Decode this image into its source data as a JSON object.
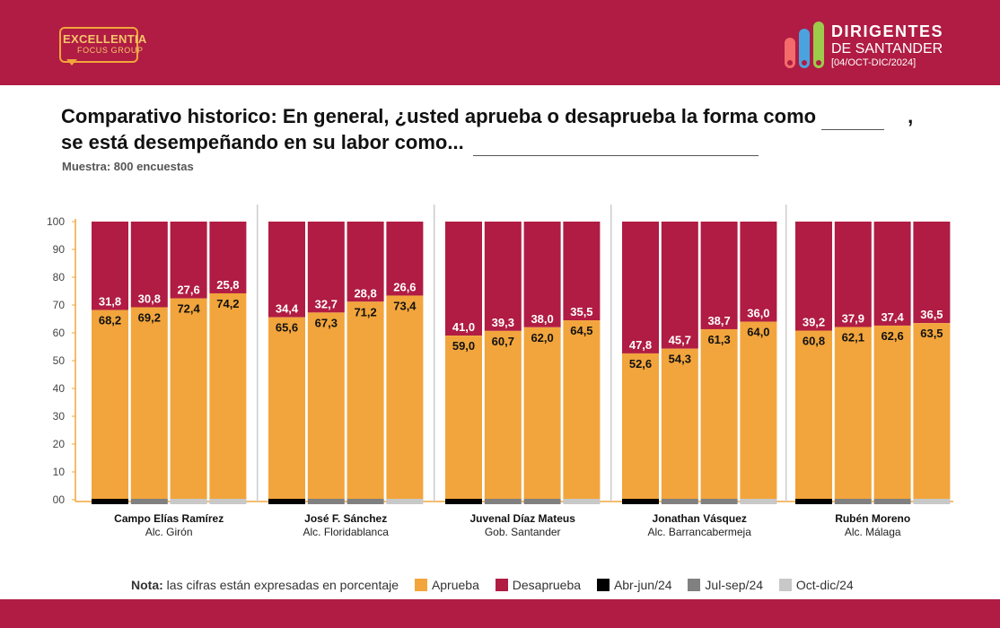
{
  "header": {
    "brand_left_line1": "EXCELLENTIA",
    "brand_left_line2": "FOCUS GROUP",
    "brand_right_line1": "DIRIGENTES",
    "brand_right_line2": "DE SANTANDER",
    "brand_right_line3": "[04/OCT-DIC/2024]"
  },
  "title_line1": "Comparativo historico: En general, ¿usted aprueba o desaprueba la forma como",
  "title_comma": ",",
  "title_line2": "se está desempeñando en su labor como...",
  "sample": "Muestra: 800 encuestas",
  "legend": {
    "note_label": "Nota:",
    "note_text": "las cifras están expresadas en porcentaje",
    "approve": "Aprueba",
    "disapprove": "Desaprueba",
    "period1": "Abr-jun/24",
    "period2": "Jul-sep/24",
    "period3": "Oct-dic/24"
  },
  "colors": {
    "approve": "#f2a53c",
    "disapprove": "#b01c43",
    "period1": "#000000",
    "period2": "#808080",
    "period3": "#c8c8c8",
    "banner": "#b01c43"
  },
  "chart_data": {
    "type": "bar",
    "stacked": true,
    "ylim": [
      0,
      100
    ],
    "yticks": [
      "00",
      "10",
      "20",
      "30",
      "40",
      "50",
      "60",
      "70",
      "80",
      "90",
      "100"
    ],
    "periods": [
      "Abr-jun/24",
      "Jul-sep/24",
      "Oct-dic/24"
    ],
    "groups": [
      {
        "name": "Campo Elías Ramírez",
        "role": "Alc. Girón",
        "bars": [
          {
            "aprueba": 68.2,
            "desaprueba": 31.8,
            "aprueba_label": "68,2",
            "desaprueba_label": "31,8",
            "period": 0
          },
          {
            "aprueba": 69.2,
            "desaprueba": 30.8,
            "aprueba_label": "69,2",
            "desaprueba_label": "30,8",
            "period": 1
          },
          {
            "aprueba": 72.4,
            "desaprueba": 27.6,
            "aprueba_label": "72,4",
            "desaprueba_label": "27,6",
            "period": 2
          },
          {
            "aprueba": 74.2,
            "desaprueba": 25.8,
            "aprueba_label": "74,2",
            "desaprueba_label": "25,8",
            "period": 2
          }
        ]
      },
      {
        "name": "José F. Sánchez",
        "role": "Alc. Floridablanca",
        "bars": [
          {
            "aprueba": 65.6,
            "desaprueba": 34.4,
            "aprueba_label": "65,6",
            "desaprueba_label": "34,4",
            "period": 0
          },
          {
            "aprueba": 67.3,
            "desaprueba": 32.7,
            "aprueba_label": "67,3",
            "desaprueba_label": "32,7",
            "period": 1
          },
          {
            "aprueba": 71.2,
            "desaprueba": 28.8,
            "aprueba_label": "71,2",
            "desaprueba_label": "28,8",
            "period": 1
          },
          {
            "aprueba": 73.4,
            "desaprueba": 26.6,
            "aprueba_label": "73,4",
            "desaprueba_label": "26,6",
            "period": 2
          }
        ]
      },
      {
        "name": "Juvenal Díaz Mateus",
        "role": "Gob. Santander",
        "bars": [
          {
            "aprueba": 59.0,
            "desaprueba": 41.0,
            "aprueba_label": "59,0",
            "desaprueba_label": "41,0",
            "period": 0
          },
          {
            "aprueba": 60.7,
            "desaprueba": 39.3,
            "aprueba_label": "60,7",
            "desaprueba_label": "39,3",
            "period": 1
          },
          {
            "aprueba": 62.0,
            "desaprueba": 38.0,
            "aprueba_label": "62,0",
            "desaprueba_label": "38,0",
            "period": 1
          },
          {
            "aprueba": 64.5,
            "desaprueba": 35.5,
            "aprueba_label": "64,5",
            "desaprueba_label": "35,5",
            "period": 2
          }
        ]
      },
      {
        "name": "Jonathan Vásquez",
        "role": "Alc. Barrancabermeja",
        "bars": [
          {
            "aprueba": 52.6,
            "desaprueba": 47.8,
            "aprueba_label": "52,6",
            "desaprueba_label": "47,8",
            "period": 0
          },
          {
            "aprueba": 54.3,
            "desaprueba": 45.7,
            "aprueba_label": "54,3",
            "desaprueba_label": "45,7",
            "period": 1
          },
          {
            "aprueba": 61.3,
            "desaprueba": 38.7,
            "aprueba_label": "61,3",
            "desaprueba_label": "38,7",
            "period": 1
          },
          {
            "aprueba": 64.0,
            "desaprueba": 36.0,
            "aprueba_label": "64,0",
            "desaprueba_label": "36,0",
            "period": 2
          }
        ]
      },
      {
        "name": "Rubén Moreno",
        "role": "Alc. Málaga",
        "bars": [
          {
            "aprueba": 60.8,
            "desaprueba": 39.2,
            "aprueba_label": "60,8",
            "desaprueba_label": "39,2",
            "period": 0
          },
          {
            "aprueba": 62.1,
            "desaprueba": 37.9,
            "aprueba_label": "62,1",
            "desaprueba_label": "37,9",
            "period": 1
          },
          {
            "aprueba": 62.6,
            "desaprueba": 37.4,
            "aprueba_label": "62,6",
            "desaprueba_label": "37,4",
            "period": 1
          },
          {
            "aprueba": 63.5,
            "desaprueba": 36.5,
            "aprueba_label": "63,5",
            "desaprueba_label": "36,5",
            "period": 2
          }
        ]
      }
    ]
  }
}
